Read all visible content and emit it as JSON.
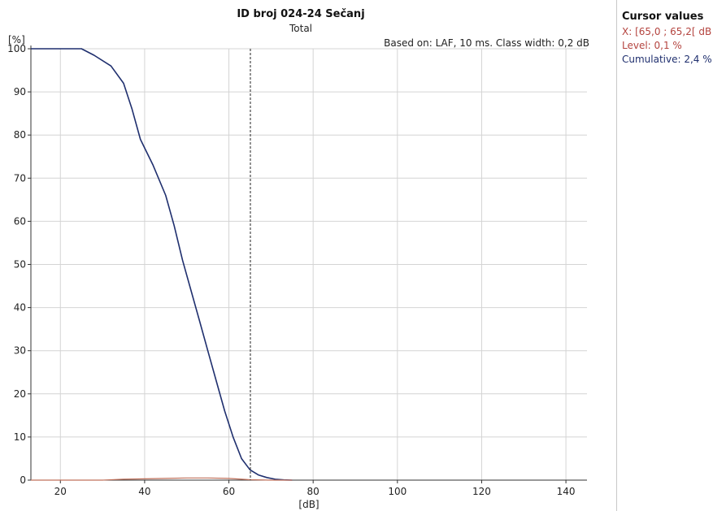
{
  "chart_data": {
    "type": "line",
    "title": "ID broj 024-24 Sečanj",
    "subtitle": "Total",
    "note": "Based on: LAF, 10 ms. Class width: 0,2 dB",
    "xlabel": "[dB]",
    "ylabel": "[%]",
    "xlim": [
      13,
      145
    ],
    "ylim": [
      0,
      100
    ],
    "x_ticks": [
      20,
      40,
      60,
      80,
      100,
      120,
      140
    ],
    "y_ticks": [
      0,
      10,
      20,
      30,
      40,
      50,
      60,
      70,
      80,
      90,
      100
    ],
    "grid": true,
    "cursor_x": 65.1,
    "series": [
      {
        "color": "#1f2f6e",
        "x": [
          13,
          20,
          25,
          28,
          32,
          35,
          37,
          39,
          42,
          45,
          47,
          49,
          51,
          53,
          55,
          57,
          59,
          61,
          63,
          65,
          67,
          69,
          71,
          73,
          75
        ],
        "y": [
          100,
          100,
          100,
          98.5,
          96,
          92,
          86,
          79,
          73,
          66,
          59,
          51,
          44,
          37,
          30,
          23,
          16,
          10,
          5,
          2.4,
          1.2,
          0.6,
          0.2,
          0.05,
          0
        ]
      },
      {
        "color": "#c0705a",
        "x": [
          13,
          30,
          35,
          40,
          45,
          50,
          55,
          60,
          65,
          70,
          75
        ],
        "y": [
          0,
          0,
          0.2,
          0.3,
          0.4,
          0.5,
          0.5,
          0.4,
          0.1,
          0,
          0
        ]
      }
    ]
  },
  "cursor_panel": {
    "heading": "Cursor values",
    "x_text": "X: [65,0 ; 65,2[ dB",
    "level_text": "Level: 0,1 %",
    "cumulative_text": "Cumulative: 2,4 %"
  }
}
